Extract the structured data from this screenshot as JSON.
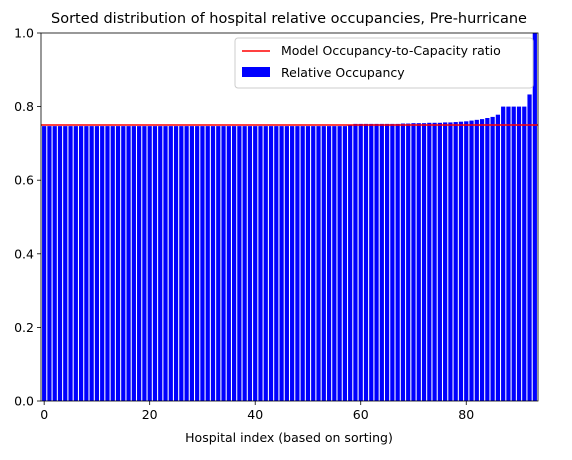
{
  "chart_data": {
    "type": "bar",
    "title": "Sorted distribution of hospital relative occupancies, Pre-hurricane",
    "xlabel": "Hospital index (based on sorting)",
    "ylabel": "",
    "xlim": [
      -0.6,
      93.6
    ],
    "ylim": [
      0.0,
      1.0
    ],
    "x_ticks": [
      0,
      20,
      40,
      60,
      80
    ],
    "y_ticks": [
      0.0,
      0.2,
      0.4,
      0.6,
      0.8,
      1.0
    ],
    "x_tick_labels": [
      "0",
      "20",
      "40",
      "60",
      "80"
    ],
    "y_tick_labels": [
      "0.0",
      "0.2",
      "0.4",
      "0.6",
      "0.8",
      "1.0"
    ],
    "grid": false,
    "legend_position": "top-right",
    "bar_series": {
      "name": "Relative Occupancy",
      "color": "#0000ff",
      "x": [
        0,
        1,
        2,
        3,
        4,
        5,
        6,
        7,
        8,
        9,
        10,
        11,
        12,
        13,
        14,
        15,
        16,
        17,
        18,
        19,
        20,
        21,
        22,
        23,
        24,
        25,
        26,
        27,
        28,
        29,
        30,
        31,
        32,
        33,
        34,
        35,
        36,
        37,
        38,
        39,
        40,
        41,
        42,
        43,
        44,
        45,
        46,
        47,
        48,
        49,
        50,
        51,
        52,
        53,
        54,
        55,
        56,
        57,
        58,
        59,
        60,
        61,
        62,
        63,
        64,
        65,
        66,
        67,
        68,
        69,
        70,
        71,
        72,
        73,
        74,
        75,
        76,
        77,
        78,
        79,
        80,
        81,
        82,
        83,
        84,
        85,
        86,
        87,
        88,
        89,
        90,
        91,
        92,
        93
      ],
      "values": [
        0.747,
        0.747,
        0.747,
        0.747,
        0.747,
        0.747,
        0.747,
        0.747,
        0.747,
        0.747,
        0.747,
        0.747,
        0.747,
        0.747,
        0.747,
        0.747,
        0.747,
        0.747,
        0.747,
        0.747,
        0.747,
        0.747,
        0.747,
        0.747,
        0.747,
        0.747,
        0.747,
        0.747,
        0.747,
        0.747,
        0.747,
        0.747,
        0.747,
        0.747,
        0.747,
        0.747,
        0.747,
        0.747,
        0.747,
        0.747,
        0.747,
        0.747,
        0.747,
        0.747,
        0.747,
        0.747,
        0.747,
        0.747,
        0.747,
        0.747,
        0.747,
        0.747,
        0.747,
        0.747,
        0.747,
        0.747,
        0.747,
        0.747,
        0.75,
        0.753,
        0.753,
        0.753,
        0.753,
        0.753,
        0.753,
        0.753,
        0.753,
        0.753,
        0.754,
        0.754,
        0.755,
        0.755,
        0.755,
        0.756,
        0.756,
        0.756,
        0.757,
        0.757,
        0.758,
        0.759,
        0.76,
        0.762,
        0.764,
        0.766,
        0.769,
        0.772,
        0.778,
        0.8,
        0.8,
        0.8,
        0.8,
        0.8,
        0.833,
        1.0
      ]
    },
    "reference_line": {
      "name": "Model Occupancy-to-Capacity ratio",
      "color": "#ff0000",
      "y": 0.75
    }
  }
}
